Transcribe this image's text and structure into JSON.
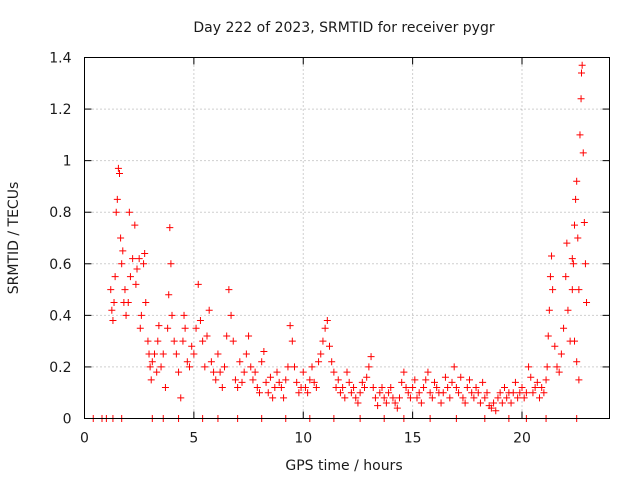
{
  "chart_data": {
    "type": "scatter",
    "title": "Day 222 of 2023, SRMTID for receiver pygr",
    "xlabel": "GPS time / hours",
    "ylabel": "SRMTID / TECUs",
    "xlim": [
      0,
      24
    ],
    "ylim": [
      0,
      1.4
    ],
    "xticks": [
      0,
      5,
      10,
      15,
      20
    ],
    "xtick_labels": [
      "0",
      "5",
      "10",
      "15",
      "20"
    ],
    "yticks": [
      0,
      0.2,
      0.4,
      0.6,
      0.8,
      1.0,
      1.2,
      1.4
    ],
    "ytick_labels": [
      "0",
      "0.2",
      "0.4",
      "0.6",
      "0.8",
      "1",
      "1.2",
      "1.4"
    ],
    "grid": true,
    "marker": "+",
    "color": "#ff0000",
    "series": [
      {
        "name": "SRMTID",
        "points": [
          [
            0.4,
            0.0
          ],
          [
            0.8,
            0.0
          ],
          [
            1.0,
            0.0
          ],
          [
            1.3,
            0.0
          ],
          [
            1.7,
            0.0
          ],
          [
            3.1,
            0.0
          ],
          [
            3.6,
            0.0
          ],
          [
            4.3,
            0.0
          ],
          [
            5.4,
            0.0
          ],
          [
            6.1,
            0.0
          ],
          [
            7.0,
            0.0
          ],
          [
            8.1,
            0.0
          ],
          [
            9.2,
            0.0
          ],
          [
            10.3,
            0.0
          ],
          [
            11.4,
            0.0
          ],
          [
            12.6,
            0.0
          ],
          [
            13.7,
            0.0
          ],
          [
            14.6,
            0.0
          ],
          [
            15.8,
            0.0
          ],
          [
            17.0,
            0.0
          ],
          [
            18.3,
            0.0
          ],
          [
            19.4,
            0.0
          ],
          [
            20.2,
            0.0
          ],
          [
            21.1,
            0.0
          ],
          [
            22.5,
            0.0
          ],
          [
            1.2,
            0.5
          ],
          [
            1.25,
            0.42
          ],
          [
            1.3,
            0.38
          ],
          [
            1.35,
            0.45
          ],
          [
            1.4,
            0.55
          ],
          [
            1.45,
            0.8
          ],
          [
            1.5,
            0.85
          ],
          [
            1.55,
            0.97
          ],
          [
            1.6,
            0.95
          ],
          [
            1.65,
            0.7
          ],
          [
            1.7,
            0.6
          ],
          [
            1.75,
            0.65
          ],
          [
            1.8,
            0.45
          ],
          [
            1.85,
            0.5
          ],
          [
            1.9,
            0.4
          ],
          [
            2.0,
            0.45
          ],
          [
            2.05,
            0.8
          ],
          [
            2.1,
            0.55
          ],
          [
            2.2,
            0.62
          ],
          [
            2.3,
            0.75
          ],
          [
            2.35,
            0.52
          ],
          [
            2.4,
            0.58
          ],
          [
            2.5,
            0.62
          ],
          [
            2.55,
            0.35
          ],
          [
            2.6,
            0.4
          ],
          [
            2.7,
            0.6
          ],
          [
            2.75,
            0.64
          ],
          [
            2.8,
            0.45
          ],
          [
            2.9,
            0.3
          ],
          [
            2.95,
            0.25
          ],
          [
            3.0,
            0.2
          ],
          [
            3.05,
            0.15
          ],
          [
            3.1,
            0.22
          ],
          [
            3.2,
            0.25
          ],
          [
            3.3,
            0.18
          ],
          [
            3.35,
            0.3
          ],
          [
            3.4,
            0.36
          ],
          [
            3.5,
            0.2
          ],
          [
            3.6,
            0.25
          ],
          [
            3.7,
            0.12
          ],
          [
            3.8,
            0.35
          ],
          [
            3.85,
            0.48
          ],
          [
            3.9,
            0.74
          ],
          [
            3.95,
            0.6
          ],
          [
            4.0,
            0.4
          ],
          [
            4.1,
            0.3
          ],
          [
            4.2,
            0.25
          ],
          [
            4.3,
            0.18
          ],
          [
            4.4,
            0.08
          ],
          [
            4.5,
            0.3
          ],
          [
            4.55,
            0.4
          ],
          [
            4.6,
            0.35
          ],
          [
            4.7,
            0.22
          ],
          [
            4.8,
            0.2
          ],
          [
            4.9,
            0.28
          ],
          [
            5.0,
            0.25
          ],
          [
            5.1,
            0.35
          ],
          [
            5.2,
            0.52
          ],
          [
            5.3,
            0.38
          ],
          [
            5.4,
            0.3
          ],
          [
            5.5,
            0.2
          ],
          [
            5.6,
            0.32
          ],
          [
            5.7,
            0.42
          ],
          [
            5.8,
            0.22
          ],
          [
            5.9,
            0.18
          ],
          [
            6.0,
            0.15
          ],
          [
            6.1,
            0.25
          ],
          [
            6.2,
            0.18
          ],
          [
            6.3,
            0.12
          ],
          [
            6.4,
            0.2
          ],
          [
            6.5,
            0.32
          ],
          [
            6.6,
            0.5
          ],
          [
            6.7,
            0.4
          ],
          [
            6.8,
            0.3
          ],
          [
            6.9,
            0.15
          ],
          [
            7.0,
            0.12
          ],
          [
            7.1,
            0.22
          ],
          [
            7.2,
            0.14
          ],
          [
            7.3,
            0.18
          ],
          [
            7.4,
            0.25
          ],
          [
            7.5,
            0.32
          ],
          [
            7.6,
            0.2
          ],
          [
            7.7,
            0.15
          ],
          [
            7.8,
            0.18
          ],
          [
            7.9,
            0.12
          ],
          [
            8.0,
            0.1
          ],
          [
            8.1,
            0.22
          ],
          [
            8.2,
            0.26
          ],
          [
            8.3,
            0.14
          ],
          [
            8.4,
            0.1
          ],
          [
            8.5,
            0.16
          ],
          [
            8.6,
            0.08
          ],
          [
            8.7,
            0.12
          ],
          [
            8.8,
            0.18
          ],
          [
            8.9,
            0.14
          ],
          [
            9.0,
            0.12
          ],
          [
            9.1,
            0.08
          ],
          [
            9.2,
            0.15
          ],
          [
            9.3,
            0.2
          ],
          [
            9.4,
            0.36
          ],
          [
            9.5,
            0.3
          ],
          [
            9.6,
            0.2
          ],
          [
            9.7,
            0.14
          ],
          [
            9.8,
            0.1
          ],
          [
            9.9,
            0.12
          ],
          [
            10.0,
            0.18
          ],
          [
            10.1,
            0.12
          ],
          [
            10.2,
            0.1
          ],
          [
            10.3,
            0.15
          ],
          [
            10.4,
            0.2
          ],
          [
            10.5,
            0.14
          ],
          [
            10.6,
            0.12
          ],
          [
            10.7,
            0.22
          ],
          [
            10.8,
            0.25
          ],
          [
            10.9,
            0.3
          ],
          [
            11.0,
            0.35
          ],
          [
            11.1,
            0.38
          ],
          [
            11.2,
            0.28
          ],
          [
            11.3,
            0.22
          ],
          [
            11.4,
            0.18
          ],
          [
            11.5,
            0.12
          ],
          [
            11.6,
            0.15
          ],
          [
            11.7,
            0.1
          ],
          [
            11.8,
            0.12
          ],
          [
            11.9,
            0.08
          ],
          [
            12.0,
            0.18
          ],
          [
            12.1,
            0.14
          ],
          [
            12.2,
            0.1
          ],
          [
            12.3,
            0.12
          ],
          [
            12.4,
            0.08
          ],
          [
            12.5,
            0.06
          ],
          [
            12.6,
            0.1
          ],
          [
            12.7,
            0.14
          ],
          [
            12.8,
            0.12
          ],
          [
            12.9,
            0.16
          ],
          [
            13.0,
            0.2
          ],
          [
            13.1,
            0.24
          ],
          [
            13.2,
            0.12
          ],
          [
            13.3,
            0.08
          ],
          [
            13.4,
            0.05
          ],
          [
            13.5,
            0.1
          ],
          [
            13.6,
            0.12
          ],
          [
            13.7,
            0.08
          ],
          [
            13.8,
            0.06
          ],
          [
            13.9,
            0.1
          ],
          [
            14.0,
            0.12
          ],
          [
            14.1,
            0.08
          ],
          [
            14.2,
            0.06
          ],
          [
            14.3,
            0.04
          ],
          [
            14.4,
            0.08
          ],
          [
            14.5,
            0.14
          ],
          [
            14.6,
            0.18
          ],
          [
            14.7,
            0.12
          ],
          [
            14.8,
            0.1
          ],
          [
            14.9,
            0.08
          ],
          [
            15.0,
            0.12
          ],
          [
            15.1,
            0.15
          ],
          [
            15.2,
            0.08
          ],
          [
            15.3,
            0.1
          ],
          [
            15.4,
            0.06
          ],
          [
            15.5,
            0.12
          ],
          [
            15.6,
            0.15
          ],
          [
            15.7,
            0.18
          ],
          [
            15.8,
            0.1
          ],
          [
            15.9,
            0.08
          ],
          [
            16.0,
            0.14
          ],
          [
            16.1,
            0.12
          ],
          [
            16.2,
            0.1
          ],
          [
            16.3,
            0.06
          ],
          [
            16.4,
            0.1
          ],
          [
            16.5,
            0.16
          ],
          [
            16.6,
            0.12
          ],
          [
            16.7,
            0.08
          ],
          [
            16.8,
            0.14
          ],
          [
            16.9,
            0.2
          ],
          [
            17.0,
            0.12
          ],
          [
            17.1,
            0.1
          ],
          [
            17.2,
            0.16
          ],
          [
            17.3,
            0.08
          ],
          [
            17.4,
            0.06
          ],
          [
            17.5,
            0.12
          ],
          [
            17.6,
            0.15
          ],
          [
            17.7,
            0.1
          ],
          [
            17.8,
            0.08
          ],
          [
            17.9,
            0.12
          ],
          [
            18.0,
            0.1
          ],
          [
            18.1,
            0.06
          ],
          [
            18.2,
            0.14
          ],
          [
            18.3,
            0.08
          ],
          [
            18.4,
            0.1
          ],
          [
            18.5,
            0.05
          ],
          [
            18.6,
            0.04
          ],
          [
            18.7,
            0.06
          ],
          [
            18.8,
            0.03
          ],
          [
            18.9,
            0.08
          ],
          [
            19.0,
            0.1
          ],
          [
            19.1,
            0.06
          ],
          [
            19.2,
            0.12
          ],
          [
            19.3,
            0.08
          ],
          [
            19.4,
            0.1
          ],
          [
            19.5,
            0.06
          ],
          [
            19.6,
            0.1
          ],
          [
            19.7,
            0.14
          ],
          [
            19.8,
            0.08
          ],
          [
            19.9,
            0.1
          ],
          [
            20.0,
            0.12
          ],
          [
            20.1,
            0.08
          ],
          [
            20.2,
            0.1
          ],
          [
            20.3,
            0.2
          ],
          [
            20.4,
            0.16
          ],
          [
            20.5,
            0.1
          ],
          [
            20.6,
            0.12
          ],
          [
            20.7,
            0.14
          ],
          [
            20.8,
            0.08
          ],
          [
            20.9,
            0.12
          ],
          [
            21.0,
            0.1
          ],
          [
            21.1,
            0.15
          ],
          [
            21.15,
            0.2
          ],
          [
            21.2,
            0.32
          ],
          [
            21.25,
            0.42
          ],
          [
            21.3,
            0.55
          ],
          [
            21.35,
            0.63
          ],
          [
            21.4,
            0.5
          ],
          [
            21.5,
            0.28
          ],
          [
            21.6,
            0.2
          ],
          [
            21.7,
            0.18
          ],
          [
            21.8,
            0.25
          ],
          [
            21.9,
            0.35
          ],
          [
            22.0,
            0.55
          ],
          [
            22.05,
            0.68
          ],
          [
            22.1,
            0.42
          ],
          [
            22.2,
            0.3
          ],
          [
            22.3,
            0.5
          ],
          [
            22.35,
            0.6
          ],
          [
            22.4,
            0.75
          ],
          [
            22.45,
            0.85
          ],
          [
            22.5,
            0.92
          ],
          [
            22.55,
            0.7
          ],
          [
            22.6,
            0.5
          ],
          [
            22.65,
            1.1
          ],
          [
            22.7,
            1.24
          ],
          [
            22.72,
            1.34
          ],
          [
            22.75,
            1.37
          ],
          [
            22.8,
            1.03
          ],
          [
            22.85,
            0.76
          ],
          [
            22.9,
            0.6
          ],
          [
            22.95,
            0.45
          ],
          [
            22.6,
            0.15
          ],
          [
            22.5,
            0.22
          ],
          [
            22.4,
            0.3
          ],
          [
            22.3,
            0.62
          ]
        ]
      }
    ]
  }
}
